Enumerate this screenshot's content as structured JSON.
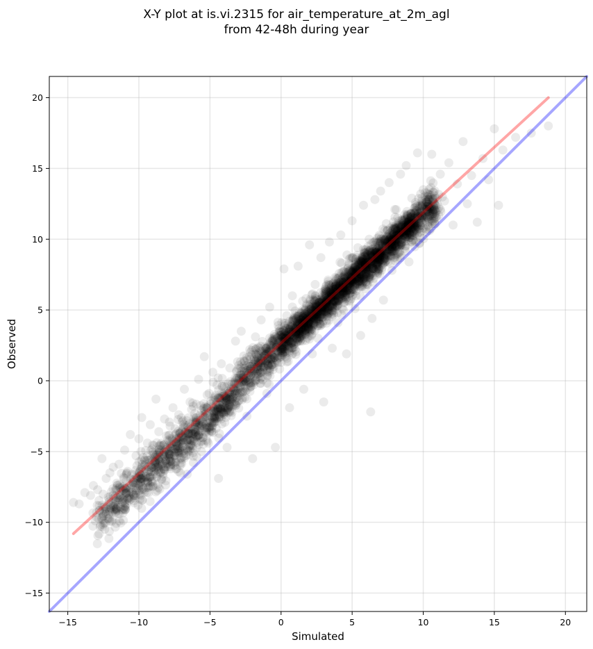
{
  "chart_data": {
    "type": "scatter",
    "title_line1": "X-Y plot at is.vi.2315 for air_temperature_at_2m_agl",
    "title_line2": "from 42-48h during year",
    "xlabel": "Simulated",
    "ylabel": "Observed",
    "xlim": [
      -16.3,
      21.5
    ],
    "ylim": [
      -16.3,
      21.5
    ],
    "xticks": [
      -15,
      -10,
      -5,
      0,
      5,
      10,
      15,
      20
    ],
    "yticks": [
      -15,
      -10,
      -5,
      0,
      5,
      10,
      15,
      20
    ],
    "xtick_labels": [
      "−15",
      "−10",
      "−5",
      "0",
      "5",
      "10",
      "15",
      "20"
    ],
    "ytick_labels": [
      "−15",
      "−10",
      "−5",
      "0",
      "5",
      "10",
      "15",
      "20"
    ],
    "grid": true,
    "point_color": "#000000",
    "point_alpha": 0.08,
    "fit_line": {
      "color": "#ff0000",
      "alpha": 0.35,
      "x": [
        -14.6,
        18.8
      ],
      "y": [
        -10.8,
        20.0
      ]
    },
    "identity_line": {
      "color": "#0000ff",
      "alpha": 0.35,
      "x": [
        -16.3,
        21.5
      ],
      "y": [
        -16.3,
        21.5
      ]
    },
    "cluster_points": [
      [
        -14.6,
        -8.6
      ],
      [
        -14.2,
        -8.7
      ],
      [
        -13.8,
        -7.9
      ],
      [
        -13.4,
        -8.1
      ],
      [
        -13.2,
        -7.4
      ],
      [
        -12.9,
        -7.7
      ],
      [
        -12.6,
        -5.5
      ],
      [
        -12.3,
        -6.9
      ],
      [
        -12.0,
        -8.8
      ],
      [
        -11.8,
        -6.1
      ],
      [
        -11.6,
        -7.6
      ],
      [
        -11.4,
        -5.9
      ],
      [
        -11.2,
        -9.1
      ],
      [
        -11.0,
        -4.9
      ],
      [
        -10.8,
        -6.4
      ],
      [
        -10.6,
        -3.8
      ],
      [
        -10.4,
        -7.2
      ],
      [
        -10.2,
        -5.3
      ],
      [
        -10.0,
        -4.1
      ],
      [
        -9.8,
        -2.6
      ],
      [
        -9.6,
        -6.0
      ],
      [
        -9.4,
        -4.4
      ],
      [
        -9.2,
        -3.1
      ],
      [
        -9.0,
        -5.2
      ],
      [
        -8.8,
        -1.3
      ],
      [
        -8.6,
        -3.6
      ],
      [
        -8.4,
        -7.0
      ],
      [
        -8.2,
        -2.7
      ],
      [
        -8.0,
        -4.8
      ],
      [
        -7.8,
        -3.2
      ],
      [
        -7.6,
        -1.9
      ],
      [
        -7.4,
        -5.7
      ],
      [
        -7.2,
        -2.4
      ],
      [
        -7.0,
        -3.9
      ],
      [
        -6.8,
        -0.6
      ],
      [
        -6.6,
        -6.6
      ],
      [
        -6.4,
        -1.5
      ],
      [
        -6.2,
        -4.2
      ],
      [
        -6.0,
        -2.9
      ],
      [
        -5.8,
        0.1
      ],
      [
        -5.6,
        -5.0
      ],
      [
        -5.4,
        1.7
      ],
      [
        -5.2,
        -1.0
      ],
      [
        -5.0,
        -3.5
      ],
      [
        -4.8,
        0.6
      ],
      [
        -4.6,
        -2.1
      ],
      [
        -4.4,
        -6.9
      ],
      [
        -4.2,
        1.2
      ],
      [
        -4.0,
        -0.4
      ],
      [
        -3.8,
        -4.7
      ],
      [
        -3.6,
        0.9
      ],
      [
        -3.4,
        -1.8
      ],
      [
        -3.2,
        2.8
      ],
      [
        -3.0,
        -0.2
      ],
      [
        -2.8,
        3.5
      ],
      [
        -2.6,
        1.4
      ],
      [
        -2.4,
        -2.5
      ],
      [
        -2.2,
        2.2
      ],
      [
        -2.0,
        -5.5
      ],
      [
        -1.8,
        3.1
      ],
      [
        -1.6,
        0.3
      ],
      [
        -1.4,
        4.3
      ],
      [
        -1.2,
        1.8
      ],
      [
        -1.0,
        -0.9
      ],
      [
        -0.8,
        5.2
      ],
      [
        -0.6,
        2.5
      ],
      [
        -0.4,
        -4.7
      ],
      [
        -0.2,
        3.9
      ],
      [
        0.0,
        1.3
      ],
      [
        0.2,
        7.9
      ],
      [
        0.4,
        4.6
      ],
      [
        0.6,
        -1.9
      ],
      [
        0.8,
        6.0
      ],
      [
        1.0,
        2.2
      ],
      [
        1.2,
        8.1
      ],
      [
        1.4,
        3.7
      ],
      [
        1.6,
        -0.6
      ],
      [
        1.8,
        5.4
      ],
      [
        2.0,
        9.6
      ],
      [
        2.2,
        1.9
      ],
      [
        2.4,
        6.8
      ],
      [
        2.6,
        3.0
      ],
      [
        2.8,
        8.7
      ],
      [
        3.0,
        -1.5
      ],
      [
        3.2,
        5.6
      ],
      [
        3.4,
        9.8
      ],
      [
        3.6,
        2.3
      ],
      [
        3.8,
        7.3
      ],
      [
        4.0,
        4.1
      ],
      [
        4.2,
        10.3
      ],
      [
        4.4,
        6.2
      ],
      [
        4.6,
        1.9
      ],
      [
        4.8,
        8.6
      ],
      [
        5.0,
        11.3
      ],
      [
        5.2,
        5.1
      ],
      [
        5.4,
        9.4
      ],
      [
        5.6,
        3.2
      ],
      [
        5.8,
        12.4
      ],
      [
        6.0,
        7.0
      ],
      [
        6.2,
        10.0
      ],
      [
        6.4,
        4.4
      ],
      [
        6.6,
        12.8
      ],
      [
        6.8,
        8.2
      ],
      [
        7.0,
        13.4
      ],
      [
        7.2,
        5.7
      ],
      [
        7.4,
        11.1
      ],
      [
        7.6,
        14.0
      ],
      [
        7.8,
        7.8
      ],
      [
        8.0,
        12.1
      ],
      [
        8.2,
        9.0
      ],
      [
        8.4,
        14.6
      ],
      [
        8.6,
        10.6
      ],
      [
        8.8,
        15.2
      ],
      [
        9.0,
        8.4
      ],
      [
        9.2,
        12.9
      ],
      [
        9.4,
        11.0
      ],
      [
        9.6,
        16.1
      ],
      [
        9.8,
        10.1
      ],
      [
        10.0,
        13.5
      ],
      [
        10.3,
        12.3
      ],
      [
        10.6,
        16.0
      ],
      [
        10.9,
        11.6
      ],
      [
        11.2,
        14.6
      ],
      [
        11.5,
        12.7
      ],
      [
        11.8,
        15.4
      ],
      [
        12.1,
        11.0
      ],
      [
        12.4,
        13.9
      ],
      [
        12.8,
        16.9
      ],
      [
        13.1,
        12.5
      ],
      [
        13.4,
        14.5
      ],
      [
        13.8,
        11.2
      ],
      [
        14.2,
        15.7
      ],
      [
        14.6,
        14.2
      ],
      [
        15.0,
        17.8
      ],
      [
        15.3,
        12.4
      ],
      [
        15.6,
        16.3
      ],
      [
        16.5,
        17.2
      ],
      [
        17.6,
        17.5
      ],
      [
        18.8,
        18.0
      ],
      [
        6.3,
        -2.2
      ]
    ]
  }
}
